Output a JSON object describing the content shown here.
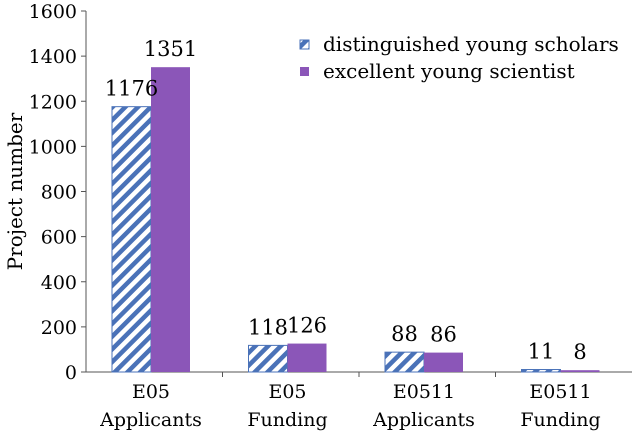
{
  "chart_data": {
    "type": "bar",
    "title": "",
    "xlabel": "",
    "ylabel": "Project number",
    "ylim": [
      0,
      1600
    ],
    "yticks": [
      0,
      200,
      400,
      600,
      800,
      1000,
      1200,
      1400,
      1600
    ],
    "grid": false,
    "legend_position": "top-right",
    "categories": [
      [
        "E05",
        "Applicants"
      ],
      [
        "E05",
        "Funding"
      ],
      [
        "E0511",
        "Applicants"
      ],
      [
        "E0511",
        "Funding"
      ]
    ],
    "series": [
      {
        "name": "distinguished young scholars",
        "values": [
          1176,
          118,
          88,
          11
        ],
        "color": "#4a72b8",
        "pattern": "diagonal-stripes"
      },
      {
        "name": "excellent young scientist",
        "values": [
          1351,
          126,
          86,
          8
        ],
        "color": "#8b56b8",
        "pattern": "solid"
      }
    ]
  }
}
